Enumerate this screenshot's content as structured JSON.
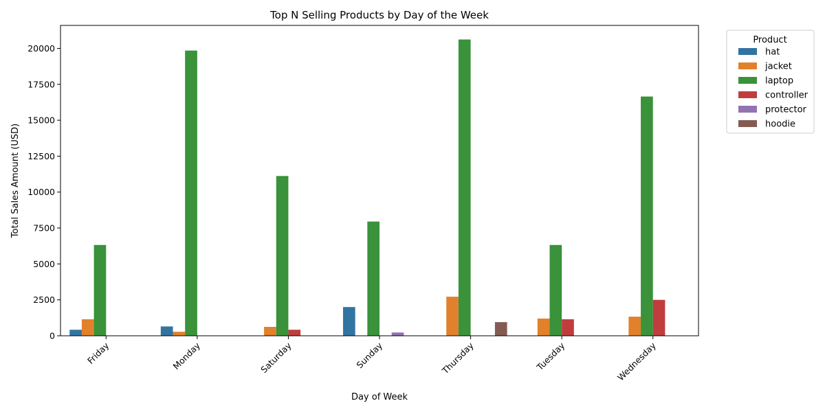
{
  "chart_data": {
    "type": "bar",
    "title": "Top N Selling Products by Day of the Week",
    "xlabel": "Day of Week",
    "ylabel": "Total Sales Amount (USD)",
    "ylim": [
      0,
      21600
    ],
    "yticks": [
      0,
      2500,
      5000,
      7500,
      10000,
      12500,
      15000,
      17500,
      20000
    ],
    "categories": [
      "Friday",
      "Monday",
      "Saturday",
      "Sunday",
      "Thursday",
      "Tuesday",
      "Wednesday"
    ],
    "legend": {
      "title": "Product",
      "placement": "outside-top-right"
    },
    "series": [
      {
        "name": "hat",
        "color": "#3274a1",
        "values": [
          420,
          650,
          null,
          2000,
          null,
          null,
          null
        ]
      },
      {
        "name": "jacket",
        "color": "#e1812c",
        "values": [
          1150,
          280,
          620,
          null,
          2720,
          1200,
          1330
        ]
      },
      {
        "name": "laptop",
        "color": "#3a923a",
        "values": [
          6320,
          19850,
          11120,
          7950,
          20620,
          6320,
          16650
        ]
      },
      {
        "name": "controller",
        "color": "#c03d3e",
        "values": [
          null,
          null,
          420,
          null,
          null,
          1150,
          2500
        ]
      },
      {
        "name": "protector",
        "color": "#9372b2",
        "values": [
          null,
          null,
          null,
          230,
          null,
          null,
          null
        ]
      },
      {
        "name": "hoodie",
        "color": "#845b53",
        "values": [
          null,
          null,
          null,
          null,
          950,
          null,
          null
        ]
      }
    ]
  }
}
